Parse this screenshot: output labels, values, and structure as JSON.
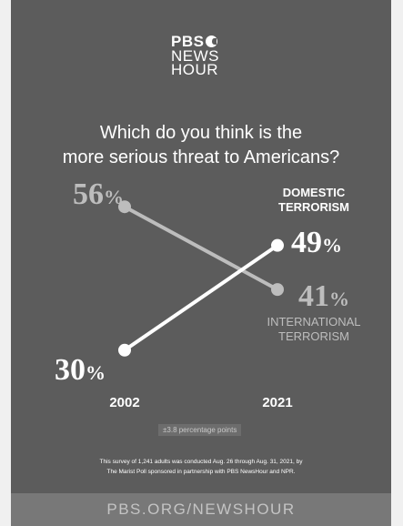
{
  "logo": {
    "line1": "PBS",
    "line2": "NEWS",
    "line3": "HOUR"
  },
  "question": {
    "line1": "Which do you think is the",
    "line2": "more serious threat to Americans?"
  },
  "chart_data": {
    "type": "line",
    "categories": [
      "2002",
      "2021"
    ],
    "series": [
      {
        "name": "INTERNATIONAL TERRORISM",
        "values": [
          56,
          41
        ],
        "labels": [
          "56",
          "41"
        ],
        "color": "#bdbdbd"
      },
      {
        "name": "DOMESTIC TERRORISM",
        "values": [
          30,
          49
        ],
        "labels": [
          "30",
          "49"
        ],
        "color": "#ffffff"
      }
    ],
    "label_unit": "%",
    "ylim": [
      26,
      60
    ]
  },
  "series_labels": {
    "domestic_line1": "DOMESTIC",
    "domestic_line2": "TERRORISM",
    "international_line1": "INTERNATIONAL",
    "international_line2": "TERRORISM"
  },
  "margin_of_error": "±3.8 percentage points",
  "source_note": {
    "line1": "This survey of 1,241 adults was conducted Aug. 26 through Aug. 31, 2021, by",
    "line2": "The Marist Poll sponsored in partnership with PBS NewsHour and NPR."
  },
  "footer": {
    "url": "PBS.ORG/NEWSHOUR"
  }
}
